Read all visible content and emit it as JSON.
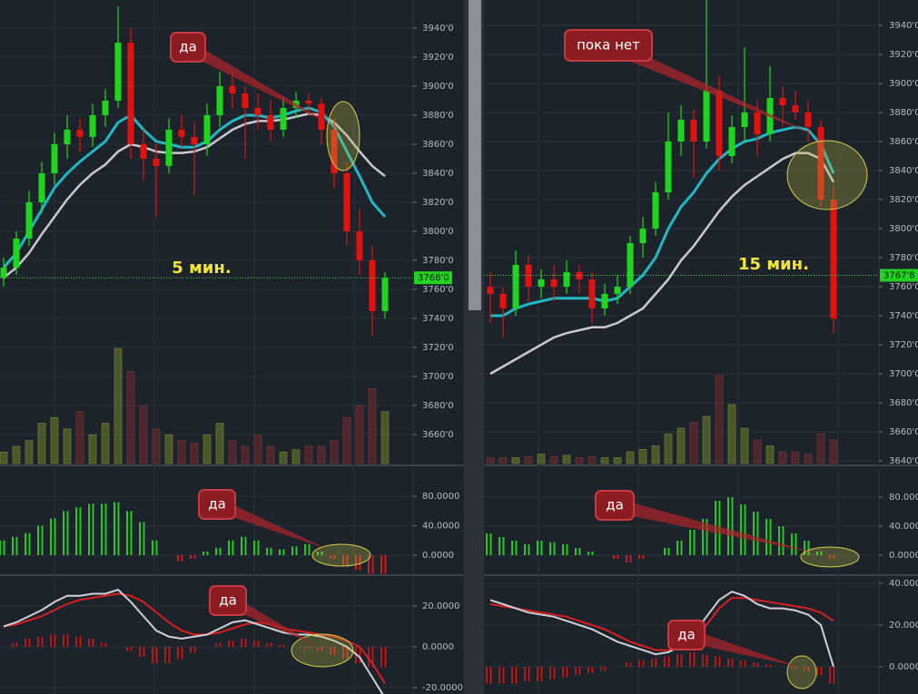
{
  "panels": [
    {
      "timeframe": "5 мин.",
      "annotations": [
        "да",
        "да",
        "да"
      ],
      "price_axis": {
        "ticks": [
          {
            "value": 3940,
            "label": "3940'0"
          },
          {
            "value": 3920,
            "label": "3920'0"
          },
          {
            "value": 3900,
            "label": "3900'0"
          },
          {
            "value": 3880,
            "label": "3880'0"
          },
          {
            "value": 3860,
            "label": "3860'0"
          },
          {
            "value": 3840,
            "label": "3840'0"
          },
          {
            "value": 3820,
            "label": "3820'0"
          },
          {
            "value": 3800,
            "label": "3800'0"
          },
          {
            "value": 3780,
            "label": "3780'0"
          },
          {
            "value": 3760,
            "label": "3760'0"
          },
          {
            "value": 3740,
            "label": "3740'0"
          },
          {
            "value": 3720,
            "label": "3720'0"
          },
          {
            "value": 3700,
            "label": "3700'0"
          },
          {
            "value": 3680,
            "label": "3680'0"
          },
          {
            "value": 3660,
            "label": "3660'0"
          }
        ]
      },
      "price_tag": {
        "value": 3768,
        "label": "3768'0"
      },
      "candles": [
        [
          3768,
          3782,
          3762,
          3775
        ],
        [
          3775,
          3800,
          3770,
          3795
        ],
        [
          3795,
          3828,
          3790,
          3820
        ],
        [
          3820,
          3848,
          3812,
          3840
        ],
        [
          3840,
          3868,
          3832,
          3860
        ],
        [
          3860,
          3880,
          3850,
          3870
        ],
        [
          3870,
          3878,
          3855,
          3865
        ],
        [
          3865,
          3888,
          3858,
          3880
        ],
        [
          3880,
          3898,
          3872,
          3890
        ],
        [
          3890,
          3955,
          3885,
          3930
        ],
        [
          3930,
          3940,
          3850,
          3860
        ],
        [
          3860,
          3870,
          3835,
          3850
        ],
        [
          3850,
          3860,
          3810,
          3845
        ],
        [
          3845,
          3878,
          3840,
          3870
        ],
        [
          3870,
          3880,
          3858,
          3865
        ],
        [
          3865,
          3875,
          3825,
          3860
        ],
        [
          3860,
          3888,
          3852,
          3880
        ],
        [
          3880,
          3910,
          3872,
          3900
        ],
        [
          3900,
          3908,
          3885,
          3895
        ],
        [
          3895,
          3900,
          3850,
          3885
        ],
        [
          3885,
          3895,
          3870,
          3880
        ],
        [
          3880,
          3890,
          3862,
          3870
        ],
        [
          3870,
          3892,
          3865,
          3885
        ],
        [
          3885,
          3896,
          3878,
          3890
        ],
        [
          3890,
          3895,
          3880,
          3888
        ],
        [
          3888,
          3892,
          3860,
          3870
        ],
        [
          3870,
          3878,
          3830,
          3840
        ],
        [
          3840,
          3848,
          3790,
          3800
        ],
        [
          3800,
          3815,
          3770,
          3780
        ],
        [
          3780,
          3790,
          3728,
          3745
        ],
        [
          3745,
          3772,
          3740,
          3768
        ]
      ],
      "ma_fast": [
        3775,
        3785,
        3800,
        3815,
        3830,
        3840,
        3848,
        3855,
        3862,
        3875,
        3880,
        3870,
        3862,
        3860,
        3858,
        3858,
        3862,
        3870,
        3876,
        3880,
        3880,
        3878,
        3880,
        3883,
        3885,
        3882,
        3872,
        3855,
        3838,
        3820,
        3810
      ],
      "ma_slow": [
        3768,
        3775,
        3785,
        3798,
        3810,
        3822,
        3832,
        3840,
        3846,
        3855,
        3860,
        3858,
        3855,
        3854,
        3854,
        3855,
        3858,
        3864,
        3870,
        3874,
        3876,
        3876,
        3877,
        3879,
        3881,
        3880,
        3875,
        3866,
        3855,
        3845,
        3838
      ],
      "volume": [
        10,
        15,
        20,
        35,
        40,
        30,
        45,
        25,
        35,
        100,
        80,
        50,
        30,
        25,
        20,
        18,
        25,
        35,
        20,
        15,
        25,
        15,
        10,
        12,
        15,
        15,
        20,
        40,
        50,
        65,
        45
      ],
      "macd_axis": {
        "ticks": [
          {
            "value": 80,
            "label": "80.0000"
          },
          {
            "value": 40,
            "label": "40.0000"
          },
          {
            "value": 0,
            "label": "0.0000"
          }
        ]
      },
      "macd_hist": [
        20,
        25,
        30,
        40,
        50,
        60,
        65,
        70,
        70,
        72,
        60,
        45,
        20,
        0,
        -8,
        -5,
        5,
        10,
        20,
        25,
        20,
        10,
        8,
        12,
        15,
        5,
        -5,
        -15,
        -20,
        -25,
        -25
      ],
      "osc_axis": {
        "ticks": [
          {
            "value": 20,
            "label": "20.0000"
          },
          {
            "value": 0,
            "label": "0.0000"
          },
          {
            "value": -20,
            "label": "-20.0000"
          }
        ]
      },
      "osc_fast": [
        10,
        12,
        15,
        18,
        22,
        25,
        25,
        26,
        26,
        28,
        22,
        15,
        8,
        5,
        4,
        5,
        6,
        9,
        12,
        13,
        11,
        9,
        7,
        6,
        6,
        5,
        3,
        0,
        -5,
        -15,
        -25
      ],
      "osc_slow": [
        10,
        11,
        13,
        15,
        18,
        21,
        23,
        24,
        25,
        26,
        25,
        22,
        17,
        12,
        8,
        6,
        6,
        7,
        9,
        11,
        12,
        11,
        9,
        8,
        7,
        6,
        5,
        3,
        0,
        -8,
        -18
      ],
      "osc_hist": [
        0,
        2,
        4,
        5,
        6,
        6,
        5,
        4,
        2,
        0,
        -2,
        -5,
        -8,
        -8,
        -6,
        -3,
        0,
        2,
        3,
        4,
        3,
        2,
        1,
        0,
        -1,
        -2,
        -4,
        -6,
        -8,
        -10,
        -10
      ]
    },
    {
      "timeframe": "15 мин.",
      "annotations": [
        "пока нет",
        "да",
        "да"
      ],
      "price_axis": {
        "ticks": [
          {
            "value": 3940,
            "label": "3940'0"
          },
          {
            "value": 3920,
            "label": "3920'0"
          },
          {
            "value": 3900,
            "label": "3900'0"
          },
          {
            "value": 3880,
            "label": "3880'0"
          },
          {
            "value": 3860,
            "label": "3860'0"
          },
          {
            "value": 3840,
            "label": "3840'0"
          },
          {
            "value": 3820,
            "label": "3820'0"
          },
          {
            "value": 3800,
            "label": "3800'0"
          },
          {
            "value": 3780,
            "label": "3780'0"
          },
          {
            "value": 3760,
            "label": "3760'0"
          },
          {
            "value": 3740,
            "label": "3740'0"
          },
          {
            "value": 3720,
            "label": "3720'0"
          },
          {
            "value": 3700,
            "label": "3700'0"
          },
          {
            "value": 3680,
            "label": "3680'0"
          },
          {
            "value": 3660,
            "label": "3660'0"
          },
          {
            "value": 3640,
            "label": "3640'0"
          }
        ]
      },
      "price_tag": {
        "value": 3767.8,
        "label": "3767'8"
      },
      "candles": [
        [
          3760,
          3770,
          3735,
          3755
        ],
        [
          3755,
          3760,
          3725,
          3745
        ],
        [
          3745,
          3785,
          3740,
          3775
        ],
        [
          3775,
          3782,
          3750,
          3760
        ],
        [
          3760,
          3772,
          3752,
          3765
        ],
        [
          3765,
          3775,
          3750,
          3760
        ],
        [
          3760,
          3778,
          3755,
          3770
        ],
        [
          3770,
          3775,
          3755,
          3765
        ],
        [
          3765,
          3770,
          3735,
          3745
        ],
        [
          3745,
          3762,
          3740,
          3755
        ],
        [
          3755,
          3768,
          3748,
          3760
        ],
        [
          3760,
          3795,
          3755,
          3790
        ],
        [
          3790,
          3808,
          3780,
          3800
        ],
        [
          3800,
          3832,
          3795,
          3825
        ],
        [
          3825,
          3880,
          3820,
          3860
        ],
        [
          3860,
          3885,
          3850,
          3875
        ],
        [
          3875,
          3882,
          3835,
          3860
        ],
        [
          3860,
          3960,
          3855,
          3895
        ],
        [
          3895,
          3905,
          3840,
          3850
        ],
        [
          3850,
          3878,
          3845,
          3870
        ],
        [
          3870,
          3925,
          3860,
          3880
        ],
        [
          3880,
          3888,
          3850,
          3865
        ],
        [
          3865,
          3912,
          3860,
          3890
        ],
        [
          3890,
          3898,
          3870,
          3885
        ],
        [
          3885,
          3895,
          3875,
          3880
        ],
        [
          3880,
          3888,
          3860,
          3870
        ],
        [
          3870,
          3875,
          3815,
          3820
        ],
        [
          3820,
          3830,
          3728,
          3738
        ]
      ],
      "ma_fast": [
        3740,
        3740,
        3745,
        3748,
        3750,
        3752,
        3752,
        3752,
        3752,
        3750,
        3752,
        3760,
        3768,
        3780,
        3800,
        3815,
        3825,
        3838,
        3848,
        3855,
        3860,
        3862,
        3866,
        3868,
        3870,
        3868,
        3858,
        3838
      ],
      "ma_slow": [
        3700,
        3705,
        3710,
        3715,
        3720,
        3725,
        3728,
        3730,
        3732,
        3732,
        3735,
        3740,
        3745,
        3755,
        3765,
        3778,
        3788,
        3800,
        3812,
        3822,
        3830,
        3836,
        3842,
        3848,
        3852,
        3852,
        3848,
        3832
      ],
      "volume": [
        5,
        5,
        5,
        6,
        8,
        6,
        7,
        5,
        6,
        5,
        5,
        10,
        12,
        15,
        25,
        30,
        35,
        40,
        75,
        50,
        30,
        20,
        15,
        10,
        10,
        8,
        25,
        20
      ],
      "macd_axis": {
        "ticks": [
          {
            "value": 80,
            "label": "80.0000"
          },
          {
            "value": 40,
            "label": "40.0000"
          },
          {
            "value": 0,
            "label": "0.0000"
          }
        ]
      },
      "macd_hist": [
        30,
        25,
        20,
        15,
        20,
        18,
        15,
        10,
        5,
        0,
        -5,
        -10,
        -5,
        0,
        10,
        20,
        35,
        50,
        75,
        80,
        70,
        60,
        50,
        40,
        30,
        20,
        5,
        -5
      ],
      "osc_axis": {
        "ticks": [
          {
            "value": 40,
            "label": "40.0000"
          },
          {
            "value": 20,
            "label": "20.0000"
          },
          {
            "value": 0,
            "label": "0.0000"
          }
        ]
      },
      "osc_fast": [
        32,
        30,
        28,
        26,
        25,
        24,
        22,
        20,
        18,
        15,
        12,
        10,
        8,
        6,
        7,
        10,
        16,
        24,
        32,
        36,
        34,
        30,
        28,
        28,
        27,
        25,
        20,
        0
      ],
      "osc_slow": [
        30,
        29,
        28,
        27,
        26,
        25,
        24,
        22,
        20,
        18,
        15,
        12,
        10,
        8,
        8,
        10,
        14,
        20,
        28,
        33,
        33,
        32,
        31,
        30,
        29,
        28,
        26,
        22
      ],
      "osc_hist": [
        -8,
        -8,
        -8,
        -7,
        -7,
        -6,
        -5,
        -4,
        -3,
        -2,
        0,
        2,
        3,
        4,
        5,
        6,
        7,
        6,
        5,
        4,
        3,
        2,
        1,
        0,
        -1,
        -2,
        -4,
        -8
      ]
    }
  ]
}
